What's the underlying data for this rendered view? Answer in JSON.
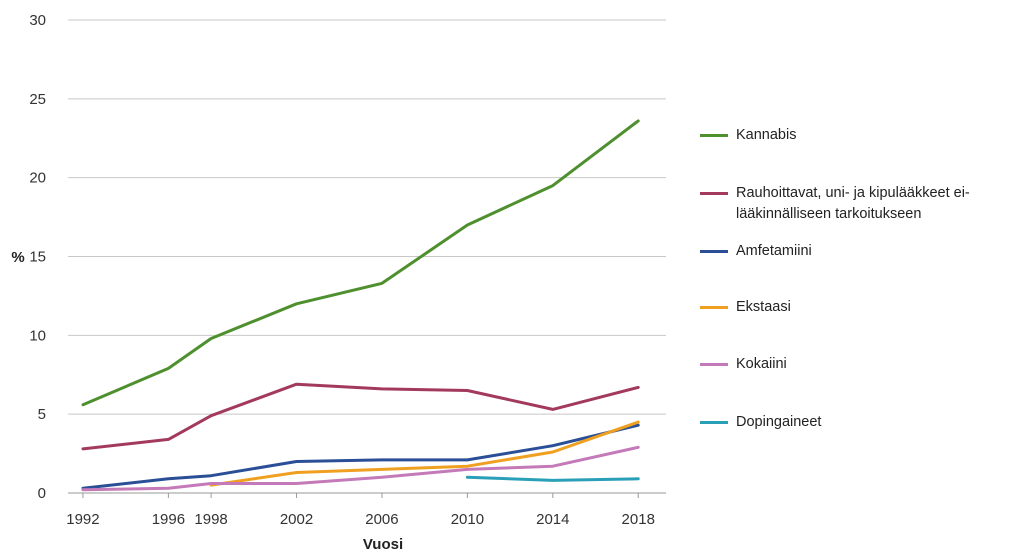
{
  "chart_data": {
    "type": "line",
    "title": "",
    "xlabel": "Vuosi",
    "ylabel": "%",
    "ylim": [
      0,
      30
    ],
    "yticks": [
      "0",
      "5",
      "10",
      "15",
      "20",
      "25",
      "30"
    ],
    "x": [
      1992,
      1996,
      1998,
      2002,
      2006,
      2010,
      2014,
      2018
    ],
    "xticks": [
      "1992",
      "1996",
      "1998",
      "2002",
      "2006",
      "2010",
      "2014",
      "2018"
    ],
    "grid": true,
    "legend_position": "right",
    "series": [
      {
        "name": "Kannabis",
        "color": "#4e8f2e",
        "x": [
          1992,
          1996,
          1998,
          2002,
          2006,
          2010,
          2014,
          2018
        ],
        "values": [
          5.6,
          7.9,
          9.8,
          12.0,
          13.3,
          17.0,
          19.5,
          23.6
        ]
      },
      {
        "name": "Rauhoittavat, uni- ja kipulääkkeet ei-lääkinnälliseen tarkoitukseen",
        "color": "#a33a5e",
        "x": [
          1992,
          1996,
          1998,
          2002,
          2006,
          2010,
          2014,
          2018
        ],
        "values": [
          2.8,
          3.4,
          4.9,
          6.9,
          6.6,
          6.5,
          5.3,
          6.7
        ]
      },
      {
        "name": "Amfetamiini",
        "color": "#2a4f96",
        "x": [
          1992,
          1996,
          1998,
          2002,
          2006,
          2010,
          2014,
          2018
        ],
        "values": [
          0.3,
          0.9,
          1.1,
          2.0,
          2.1,
          2.1,
          3.0,
          4.3
        ]
      },
      {
        "name": "Ekstaasi",
        "color": "#f0a020",
        "x": [
          1998,
          2002,
          2006,
          2010,
          2014,
          2018
        ],
        "values": [
          0.5,
          1.3,
          1.5,
          1.7,
          2.6,
          4.5
        ]
      },
      {
        "name": "Kokaiini",
        "color": "#c47ab8",
        "x": [
          1992,
          1996,
          1998,
          2002,
          2006,
          2010,
          2014,
          2018
        ],
        "values": [
          0.2,
          0.3,
          0.6,
          0.6,
          1.0,
          1.5,
          1.7,
          2.9
        ]
      },
      {
        "name": "Dopingaineet",
        "color": "#2a9fb8",
        "x": [
          2010,
          2014,
          2018
        ],
        "values": [
          1.0,
          0.8,
          0.9
        ]
      }
    ]
  }
}
